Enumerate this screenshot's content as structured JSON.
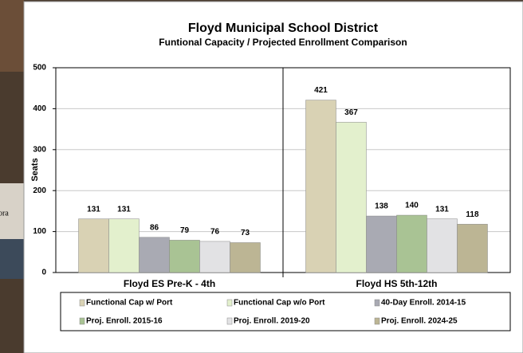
{
  "background_text": "ora",
  "chart_data": {
    "type": "bar",
    "title": "Floyd Municipal School District",
    "subtitle": "Funtional Capacity / Projected Enrollment Comparison",
    "y_label": "Seats",
    "categories": [
      "Floyd ES Pre-K - 4th",
      "Floyd HS 5th-12th"
    ],
    "series": [
      {
        "name": "Functional Cap w/ Port",
        "color": "#d9d2b4",
        "values": [
          131,
          421
        ]
      },
      {
        "name": "Functional Cap w/o Port",
        "color": "#e3f0cd",
        "values": [
          131,
          367
        ]
      },
      {
        "name": "40-Day Enroll. 2014-15",
        "color": "#a9aab3",
        "values": [
          86,
          138
        ]
      },
      {
        "name": "Proj. Enroll. 2015-16",
        "color": "#a9c394",
        "values": [
          79,
          140
        ]
      },
      {
        "name": "Proj. Enroll. 2019-20",
        "color": "#e2e2e4",
        "values": [
          76,
          131
        ]
      },
      {
        "name": "Proj. Enroll. 2024-25",
        "color": "#bcb594",
        "values": [
          73,
          118
        ]
      }
    ],
    "ylim": [
      0,
      500
    ],
    "yticks": [
      0,
      100,
      200,
      300,
      400,
      500
    ],
    "grid": true,
    "legend": "bottom"
  }
}
